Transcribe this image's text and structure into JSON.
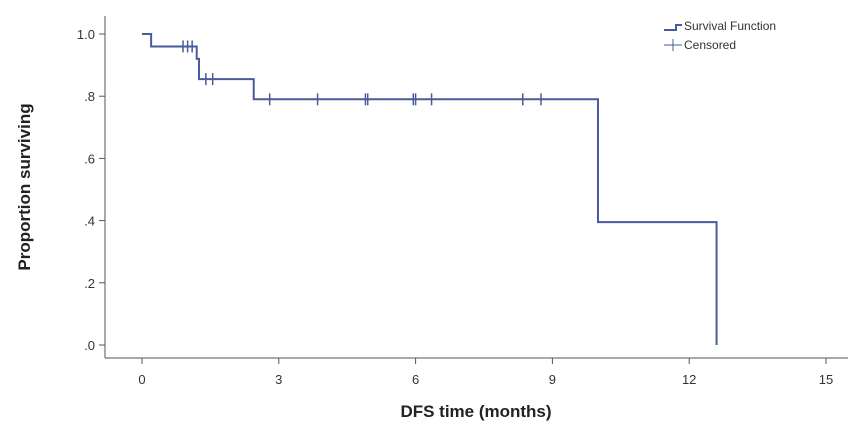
{
  "chart_data": {
    "type": "line",
    "xlabel": "DFS time (months)",
    "ylabel": "Proportion surviving",
    "xlim": [
      -1,
      15.3
    ],
    "ylim": [
      -0.05,
      1.05
    ],
    "x_ticks": [
      0,
      3,
      6,
      9,
      12,
      15
    ],
    "x_tick_labels": [
      "0",
      "3",
      "6",
      "9",
      "12",
      "15"
    ],
    "y_ticks": [
      0.0,
      0.2,
      0.4,
      0.6,
      0.8,
      1.0
    ],
    "y_tick_labels": [
      ".0",
      ".2",
      ".4",
      ".6",
      ".8",
      "1.0"
    ],
    "grid": false,
    "legend_position": "top-right",
    "series_color": "#4a5a9c",
    "series": [
      {
        "name": "Survival Function",
        "step": true,
        "points": [
          {
            "x": 0.0,
            "y": 1.0
          },
          {
            "x": 0.2,
            "y": 0.96
          },
          {
            "x": 1.2,
            "y": 0.92
          },
          {
            "x": 1.25,
            "y": 0.855
          },
          {
            "x": 2.45,
            "y": 0.79
          },
          {
            "x": 10.0,
            "y": 0.395
          },
          {
            "x": 12.6,
            "y": 0.0
          }
        ]
      },
      {
        "name": "Censored",
        "points": [
          {
            "x": 0.9,
            "y": 0.96
          },
          {
            "x": 1.0,
            "y": 0.96
          },
          {
            "x": 1.1,
            "y": 0.96
          },
          {
            "x": 1.4,
            "y": 0.855
          },
          {
            "x": 1.55,
            "y": 0.855
          },
          {
            "x": 2.8,
            "y": 0.79
          },
          {
            "x": 3.85,
            "y": 0.79
          },
          {
            "x": 4.9,
            "y": 0.79
          },
          {
            "x": 4.95,
            "y": 0.79
          },
          {
            "x": 5.95,
            "y": 0.79
          },
          {
            "x": 6.0,
            "y": 0.79
          },
          {
            "x": 6.35,
            "y": 0.79
          },
          {
            "x": 8.35,
            "y": 0.79
          },
          {
            "x": 8.75,
            "y": 0.79
          }
        ]
      }
    ]
  }
}
